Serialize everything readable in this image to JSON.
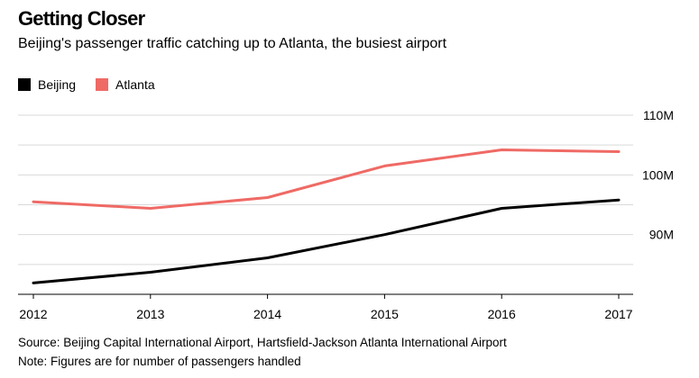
{
  "title": "Getting Closer",
  "subtitle": "Beijing's passenger traffic catching up to Atlanta, the busiest airport",
  "source": "Source: Beijing Capital International Airport, Hartsfield-Jackson Atlanta International Airport",
  "note": "Note: Figures are for number of passengers handled",
  "colors": {
    "beijing": "#000000",
    "atlanta": "#ef6a65",
    "grid": "#d9d9d9",
    "axis": "#000000"
  },
  "chart_data": {
    "type": "line",
    "title": "Getting Closer",
    "subtitle": "Beijing's passenger traffic catching up to Atlanta, the busiest airport",
    "x": [
      2012,
      2013,
      2014,
      2015,
      2016,
      2017
    ],
    "x_tick_labels": [
      "2012",
      "2013",
      "2014",
      "2015",
      "2016",
      "2017"
    ],
    "y_ticks": [
      90,
      100,
      110
    ],
    "y_tick_labels": [
      "90M",
      "100M",
      "110M"
    ],
    "ylim": [
      80,
      110
    ],
    "y_axis_side": "right",
    "grid": true,
    "legend_position": "top-left",
    "series": [
      {
        "name": "Beijing",
        "color": "#000000",
        "values": [
          81.9,
          83.7,
          86.1,
          90.0,
          94.4,
          95.8
        ]
      },
      {
        "name": "Atlanta",
        "color": "#ef6a65",
        "values": [
          95.5,
          94.4,
          96.2,
          101.5,
          104.2,
          103.9
        ]
      }
    ]
  }
}
